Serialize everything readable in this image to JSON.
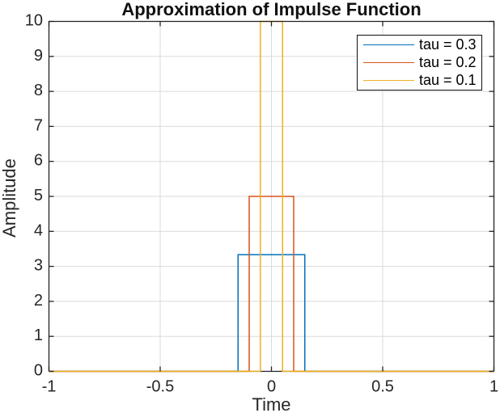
{
  "chart_data": {
    "type": "line",
    "title": "Approximation of Impulse Function",
    "xlabel": "Time",
    "ylabel": "Amplitude",
    "xlim": [
      -1,
      1
    ],
    "ylim": [
      0,
      10
    ],
    "x_ticks": [
      -1,
      -0.5,
      0,
      0.5,
      1
    ],
    "x_tick_labels": [
      "-1",
      "-0.5",
      "0",
      "0.5",
      "1"
    ],
    "y_ticks": [
      0,
      1,
      2,
      3,
      4,
      5,
      6,
      7,
      8,
      9,
      10
    ],
    "y_tick_labels": [
      "0",
      "1",
      "2",
      "3",
      "4",
      "5",
      "6",
      "7",
      "8",
      "9",
      "10"
    ],
    "grid": true,
    "legend_position": "top-right",
    "series": [
      {
        "name": "tau = 0.3",
        "tau": 0.3,
        "pulse_height": 3.3333,
        "color": "#0072BD",
        "x": [
          -1,
          -0.15,
          -0.15,
          0.15,
          0.15,
          1
        ],
        "y": [
          0,
          0,
          3.3333,
          3.3333,
          0,
          0
        ]
      },
      {
        "name": "tau = 0.2",
        "tau": 0.2,
        "pulse_height": 5,
        "color": "#D95319",
        "x": [
          -1,
          -0.1,
          -0.1,
          0.1,
          0.1,
          1
        ],
        "y": [
          0,
          0,
          5,
          5,
          0,
          0
        ]
      },
      {
        "name": "tau = 0.1",
        "tau": 0.1,
        "pulse_height": 10,
        "color": "#EDB120",
        "x": [
          -1,
          -0.05,
          -0.05,
          0.05,
          0.05,
          1
        ],
        "y": [
          0,
          0,
          10,
          10,
          0,
          0
        ]
      }
    ]
  },
  "colors": {
    "axis": "#222222",
    "grid": "#dadada",
    "tick_text": "#262626",
    "title_text": "#111111",
    "background": "#ffffff",
    "legend_border": "#111111",
    "legend_background": "#ffffff"
  }
}
